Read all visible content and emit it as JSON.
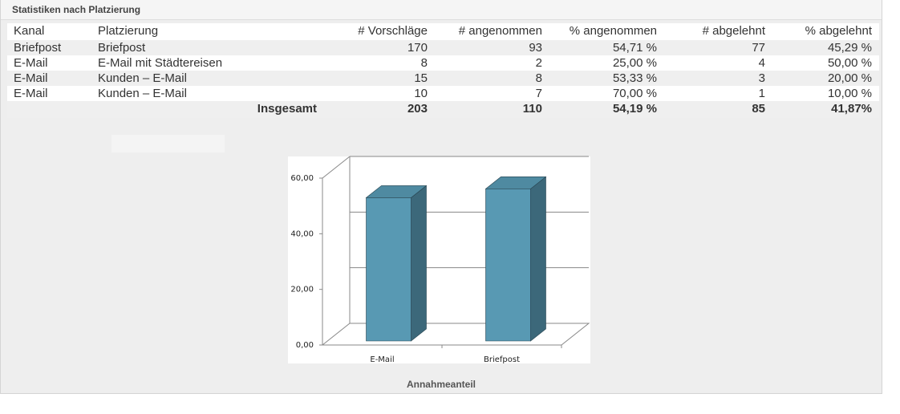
{
  "header": {
    "title": "Statistiken nach Platzierung"
  },
  "table": {
    "columns": [
      "Kanal",
      "Platzierung",
      "# Vorschläge",
      "# angenommen",
      "% angenommen",
      "# abgelehnt",
      "% abgelehnt"
    ],
    "rows": [
      [
        "Briefpost",
        "Briefpost",
        "170",
        "93",
        "54,71 %",
        "77",
        "45,29 %"
      ],
      [
        "E-Mail",
        "E-Mail mit Städtereisen",
        "8",
        "2",
        "25,00 %",
        "4",
        "50,00 %"
      ],
      [
        "E-Mail",
        "Kunden – E-Mail",
        "15",
        "8",
        "53,33 %",
        "3",
        "20,00 %"
      ],
      [
        "E-Mail",
        "Kunden – E-Mail",
        "10",
        "7",
        "70,00 %",
        "1",
        "10,00 %"
      ]
    ],
    "total": {
      "label": "Insgesamt",
      "values": [
        "203",
        "110",
        "54,19 %",
        "85",
        "41,87%"
      ]
    }
  },
  "chart_data": {
    "type": "bar",
    "title": "Annahmeanteil",
    "categories": [
      "E-Mail",
      "Briefpost"
    ],
    "values": [
      51.52,
      54.71
    ],
    "color": "#5899b3",
    "ylim": [
      0,
      60
    ],
    "yticks": [
      {
        "value": 0,
        "label": "0,00"
      },
      {
        "value": 20,
        "label": "20,00"
      },
      {
        "value": 40,
        "label": "40,00"
      },
      {
        "value": 60,
        "label": "60,00"
      }
    ],
    "grid": true
  }
}
